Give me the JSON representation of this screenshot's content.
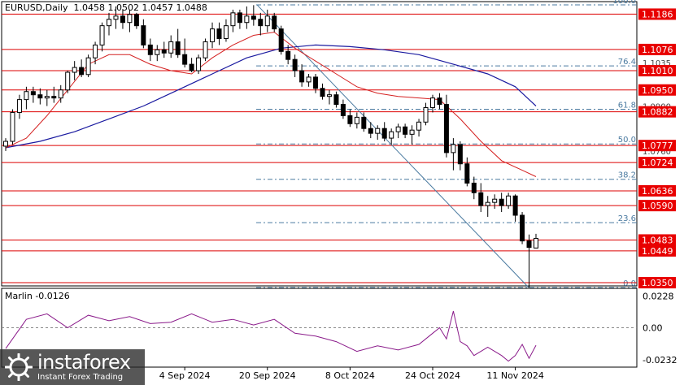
{
  "header": {
    "symbol": "EURUSD,Daily",
    "ohlc": "1.0458 1.0502 1.0457 1.0488"
  },
  "indicator": {
    "name": "Marlin -0.0126",
    "levels": [
      "0.0228",
      "0.00",
      "-0.0232"
    ]
  },
  "logo": {
    "name": "instaforex",
    "tagline": "Instant Forex Trading"
  },
  "colors": {
    "background": "#ffffff",
    "bull_candle": "#ffffff",
    "bear_candle": "#000000",
    "red_lines": "#dd0000",
    "ma_fast": "#d42020",
    "ma_slow": "#1a1aa0",
    "fib": "#4a7aa0",
    "oscillator": "#8a1a8a"
  },
  "chart_data": {
    "type": "candlestick",
    "ylim": [
      1.034,
      1.1225
    ],
    "x_labels": [
      "4 Sep 2024",
      "20 Sep 2024",
      "8 Oct 2024",
      "24 Oct 2024",
      "11 Nov 2024"
    ],
    "x_label_indices": [
      26,
      38,
      50,
      62,
      74
    ],
    "axis_ticks": [
      "1.1035",
      "1.0900",
      "1.0760"
    ],
    "horizontal_levels": [
      "1.1186",
      "1.1076",
      "1.1010",
      "1.0950",
      "1.0882",
      "1.0777",
      "1.0724",
      "1.0636",
      "1.0590",
      "1.0483",
      "1.0449",
      "1.0350"
    ],
    "fib_levels": [
      {
        "label": "100.0",
        "price": 1.1215
      },
      {
        "label": "76.4",
        "price": 1.1025
      },
      {
        "label": "61.8",
        "price": 1.089
      },
      {
        "label": "50.0",
        "price": 1.0782
      },
      {
        "label": "38.2",
        "price": 1.0672
      },
      {
        "label": "23.6",
        "price": 1.0537
      },
      {
        "label": "0.0",
        "price": 1.0335
      }
    ],
    "candles": [
      [
        1.0775,
        1.08,
        1.076,
        1.079
      ],
      [
        1.079,
        1.089,
        1.078,
        1.088
      ],
      [
        1.088,
        1.0935,
        1.086,
        1.092
      ],
      [
        1.092,
        1.096,
        1.089,
        1.0945
      ],
      [
        1.0945,
        1.096,
        1.091,
        1.0935
      ],
      [
        1.0935,
        1.0955,
        1.0905,
        1.0925
      ],
      [
        1.0925,
        1.095,
        1.09,
        1.093
      ],
      [
        1.093,
        1.096,
        1.091,
        1.0925
      ],
      [
        1.0925,
        1.0965,
        1.091,
        1.095
      ],
      [
        1.095,
        1.101,
        1.094,
        1.1005
      ],
      [
        1.1005,
        1.104,
        1.098,
        1.102
      ],
      [
        1.102,
        1.1045,
        1.099,
        1.0998
      ],
      [
        1.0998,
        1.106,
        1.099,
        1.105
      ],
      [
        1.105,
        1.11,
        1.103,
        1.109
      ],
      [
        1.109,
        1.116,
        1.107,
        1.115
      ],
      [
        1.115,
        1.119,
        1.112,
        1.117
      ],
      [
        1.117,
        1.121,
        1.114,
        1.118
      ],
      [
        1.118,
        1.1202,
        1.114,
        1.116
      ],
      [
        1.116,
        1.12,
        1.113,
        1.1185
      ],
      [
        1.1185,
        1.119,
        1.114,
        1.115
      ],
      [
        1.115,
        1.117,
        1.108,
        1.109
      ],
      [
        1.109,
        1.111,
        1.104,
        1.106
      ],
      [
        1.106,
        1.109,
        1.104,
        1.1075
      ],
      [
        1.1075,
        1.11,
        1.105,
        1.1065
      ],
      [
        1.1065,
        1.112,
        1.105,
        1.11
      ],
      [
        1.11,
        1.114,
        1.105,
        1.106
      ],
      [
        1.106,
        1.111,
        1.102,
        1.103
      ],
      [
        1.103,
        1.105,
        1.1005,
        1.101
      ],
      [
        1.101,
        1.106,
        1.1,
        1.105
      ],
      [
        1.105,
        1.111,
        1.104,
        1.11
      ],
      [
        1.11,
        1.116,
        1.108,
        1.114
      ],
      [
        1.114,
        1.116,
        1.109,
        1.111
      ],
      [
        1.111,
        1.117,
        1.11,
        1.115
      ],
      [
        1.115,
        1.12,
        1.113,
        1.119
      ],
      [
        1.119,
        1.12,
        1.114,
        1.116
      ],
      [
        1.116,
        1.121,
        1.114,
        1.118
      ],
      [
        1.118,
        1.1214,
        1.115,
        1.117
      ],
      [
        1.117,
        1.119,
        1.112,
        1.115
      ],
      [
        1.115,
        1.12,
        1.113,
        1.118
      ],
      [
        1.118,
        1.119,
        1.113,
        1.114
      ],
      [
        1.114,
        1.115,
        1.106,
        1.107
      ],
      [
        1.107,
        1.109,
        1.103,
        1.1045
      ],
      [
        1.1045,
        1.106,
        1.099,
        1.101
      ],
      [
        1.101,
        1.103,
        1.096,
        1.0975
      ],
      [
        1.0975,
        1.1,
        1.096,
        1.099
      ],
      [
        1.099,
        1.1,
        1.094,
        1.0955
      ],
      [
        1.0955,
        1.097,
        1.092,
        1.093
      ],
      [
        1.093,
        1.095,
        1.0905,
        1.0935
      ],
      [
        1.0935,
        1.0945,
        1.0895,
        1.0905
      ],
      [
        1.0905,
        1.092,
        1.086,
        1.087
      ],
      [
        1.087,
        1.089,
        1.0835,
        1.0845
      ],
      [
        1.0845,
        1.088,
        1.083,
        1.0865
      ],
      [
        1.0865,
        1.088,
        1.082,
        1.083
      ],
      [
        1.083,
        1.085,
        1.08,
        1.0815
      ],
      [
        1.0815,
        1.084,
        1.0795,
        1.083
      ],
      [
        1.083,
        1.085,
        1.079,
        1.08
      ],
      [
        1.08,
        1.083,
        1.078,
        1.082
      ],
      [
        1.082,
        1.0845,
        1.08,
        1.0835
      ],
      [
        1.0835,
        1.0845,
        1.08,
        1.0812
      ],
      [
        1.0812,
        1.084,
        1.078,
        1.0825
      ],
      [
        1.0825,
        1.086,
        1.0805,
        1.085
      ],
      [
        1.085,
        1.091,
        1.084,
        1.0895
      ],
      [
        1.0895,
        1.0935,
        1.088,
        1.0925
      ],
      [
        1.0925,
        1.094,
        1.089,
        1.0905
      ],
      [
        1.0905,
        1.0935,
        1.074,
        1.0755
      ],
      [
        1.0755,
        1.08,
        1.07,
        1.078
      ],
      [
        1.078,
        1.079,
        1.07,
        1.072
      ],
      [
        1.072,
        1.074,
        1.065,
        1.066
      ],
      [
        1.066,
        1.068,
        1.061,
        1.063
      ],
      [
        1.063,
        1.066,
        1.057,
        1.059
      ],
      [
        1.059,
        1.062,
        1.0555,
        1.06
      ],
      [
        1.06,
        1.0625,
        1.058,
        1.061
      ],
      [
        1.061,
        1.063,
        1.057,
        1.059
      ],
      [
        1.059,
        1.063,
        1.058,
        1.062
      ],
      [
        1.062,
        1.0625,
        1.054,
        1.056
      ],
      [
        1.056,
        1.057,
        1.047,
        1.048
      ],
      [
        1.048,
        1.05,
        1.0335,
        1.046
      ],
      [
        1.0458,
        1.0502,
        1.0457,
        1.0488
      ]
    ],
    "ma_fast": [
      [
        0,
        1.077
      ],
      [
        3,
        1.08
      ],
      [
        6,
        1.087
      ],
      [
        9,
        1.095
      ],
      [
        12,
        1.103
      ],
      [
        15,
        1.106
      ],
      [
        18,
        1.106
      ],
      [
        21,
        1.103
      ],
      [
        24,
        1.101
      ],
      [
        27,
        1.1
      ],
      [
        30,
        1.105
      ],
      [
        33,
        1.109
      ],
      [
        36,
        1.112
      ],
      [
        39,
        1.113
      ],
      [
        42,
        1.108
      ],
      [
        45,
        1.104
      ],
      [
        48,
        1.1
      ],
      [
        51,
        1.096
      ],
      [
        54,
        1.094
      ],
      [
        57,
        1.093
      ],
      [
        60,
        1.0925
      ],
      [
        63,
        1.092
      ],
      [
        66,
        1.086
      ],
      [
        69,
        1.079
      ],
      [
        72,
        1.073
      ],
      [
        75,
        1.07
      ],
      [
        77,
        1.068
      ]
    ],
    "ma_slow": [
      [
        0,
        1.077
      ],
      [
        5,
        1.079
      ],
      [
        10,
        1.082
      ],
      [
        15,
        1.086
      ],
      [
        20,
        1.09
      ],
      [
        25,
        1.095
      ],
      [
        30,
        1.1
      ],
      [
        35,
        1.105
      ],
      [
        40,
        1.108
      ],
      [
        45,
        1.109
      ],
      [
        50,
        1.1085
      ],
      [
        55,
        1.1075
      ],
      [
        60,
        1.106
      ],
      [
        65,
        1.103
      ],
      [
        70,
        1.1
      ],
      [
        74,
        1.096
      ],
      [
        77,
        1.09
      ]
    ],
    "oscillator": [
      [
        0,
        -0.015
      ],
      [
        3,
        0.006
      ],
      [
        6,
        0.01
      ],
      [
        9,
        0.0
      ],
      [
        12,
        0.009
      ],
      [
        15,
        0.005
      ],
      [
        18,
        0.008
      ],
      [
        21,
        0.003
      ],
      [
        24,
        0.004
      ],
      [
        27,
        0.01
      ],
      [
        30,
        0.004
      ],
      [
        33,
        0.006
      ],
      [
        36,
        0.002
      ],
      [
        39,
        0.006
      ],
      [
        42,
        -0.004
      ],
      [
        45,
        -0.006
      ],
      [
        48,
        -0.01
      ],
      [
        51,
        -0.017
      ],
      [
        54,
        -0.013
      ],
      [
        57,
        -0.016
      ],
      [
        60,
        -0.012
      ],
      [
        62,
        -0.004
      ],
      [
        63,
        0.0
      ],
      [
        64,
        -0.008
      ],
      [
        65,
        0.012
      ],
      [
        66,
        -0.01
      ],
      [
        67,
        -0.013
      ],
      [
        68,
        -0.02
      ],
      [
        70,
        -0.014
      ],
      [
        72,
        -0.02
      ],
      [
        73,
        -0.024
      ],
      [
        74,
        -0.02
      ],
      [
        75,
        -0.012
      ],
      [
        76,
        -0.022
      ],
      [
        77,
        -0.0126
      ]
    ],
    "oscillator_ylim": [
      -0.026,
      0.026
    ]
  }
}
